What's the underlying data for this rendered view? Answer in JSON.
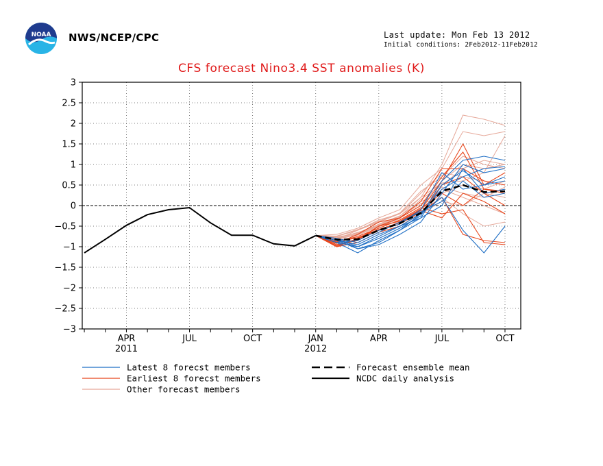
{
  "header": {
    "org": "NWS/NCEP/CPC",
    "last_update": "Last update: Mon Feb 13 2012",
    "initial_conditions": "Initial conditions: 2Feb2012-11Feb2012"
  },
  "logo": {
    "text": "NOAA",
    "colors": [
      "#1f3b8e",
      "#29b4e6"
    ]
  },
  "chart_data": {
    "type": "line",
    "title": "CFS forecast Nino3.4 SST anomalies (K)",
    "xlabel": "",
    "ylabel": "",
    "x_months": [
      "2011-02",
      "2011-03",
      "2011-04",
      "2011-05",
      "2011-06",
      "2011-07",
      "2011-08",
      "2011-09",
      "2011-10",
      "2011-11",
      "2011-12",
      "2012-01",
      "2012-02",
      "2012-03",
      "2012-04",
      "2012-05",
      "2012-06",
      "2012-07",
      "2012-08",
      "2012-09",
      "2012-10"
    ],
    "xtick_labels": [
      {
        "at": "2011-04",
        "label": "APR",
        "sub": "2011"
      },
      {
        "at": "2011-07",
        "label": "JUL",
        "sub": ""
      },
      {
        "at": "2011-10",
        "label": "OCT",
        "sub": ""
      },
      {
        "at": "2012-01",
        "label": "JAN",
        "sub": "2012"
      },
      {
        "at": "2012-04",
        "label": "APR",
        "sub": ""
      },
      {
        "at": "2012-07",
        "label": "JUL",
        "sub": ""
      },
      {
        "at": "2012-10",
        "label": "OCT",
        "sub": ""
      }
    ],
    "ylim": [
      -3,
      3
    ],
    "yticks": [
      "3",
      "2.5",
      "2",
      "1.5",
      "1",
      "0.5",
      "0",
      "−0.5",
      "−1",
      "−1.5",
      "−2",
      "−2.5",
      "−3"
    ],
    "grid": true,
    "zero_line": true,
    "colors": {
      "latest": "#1f6fc5",
      "earliest": "#e8461c",
      "other": "#e6a899",
      "mean": "#000000",
      "analysis": "#000000",
      "title": "#e01a1a"
    },
    "analysis": {
      "name": "NCDC daily analysis",
      "x": [
        "2011-02",
        "2011-03",
        "2011-04",
        "2011-05",
        "2011-06",
        "2011-07",
        "2011-08",
        "2011-09",
        "2011-10",
        "2011-11",
        "2011-12",
        "2012-01"
      ],
      "y": [
        -1.15,
        -0.82,
        -0.48,
        -0.22,
        -0.1,
        -0.05,
        -0.42,
        -0.72,
        -0.72,
        -0.93,
        -0.98,
        -0.73
      ]
    },
    "forecast_x": [
      "2012-01",
      "2012-02",
      "2012-03",
      "2012-04",
      "2012-05",
      "2012-06",
      "2012-07",
      "2012-08",
      "2012-09",
      "2012-10"
    ],
    "mean": {
      "name": "Forecast ensemble mean",
      "y": [
        -0.73,
        -0.83,
        -0.82,
        -0.6,
        -0.43,
        -0.18,
        0.35,
        0.5,
        0.33,
        0.35
      ]
    },
    "latest": {
      "name": "Latest 8 forecst members",
      "members": [
        [
          -0.73,
          -0.9,
          -1.15,
          -0.85,
          -0.6,
          -0.3,
          0.5,
          0.85,
          0.5,
          0.7
        ],
        [
          -0.73,
          -0.8,
          -1.05,
          -0.95,
          -0.7,
          -0.4,
          0.3,
          1.0,
          0.8,
          0.9
        ],
        [
          -0.73,
          -0.85,
          -0.95,
          -0.7,
          -0.5,
          -0.2,
          0.2,
          -0.6,
          -1.15,
          -0.5
        ],
        [
          -0.73,
          -0.9,
          -1.0,
          -0.8,
          -0.55,
          -0.25,
          0.6,
          1.1,
          1.2,
          1.1
        ],
        [
          -0.73,
          -0.8,
          -0.9,
          -0.65,
          -0.4,
          -0.15,
          0.1,
          0.6,
          0.2,
          0.3
        ],
        [
          -0.73,
          -0.85,
          -1.05,
          -0.9,
          -0.6,
          -0.2,
          0.4,
          0.7,
          0.9,
          0.95
        ],
        [
          -0.73,
          -0.9,
          -0.85,
          -0.6,
          -0.45,
          -0.1,
          0.8,
          0.4,
          0.5,
          0.6
        ],
        [
          -0.73,
          -0.8,
          -1.0,
          -0.75,
          -0.5,
          -0.3,
          0.0,
          0.9,
          0.3,
          0.4
        ]
      ]
    },
    "earliest": {
      "name": "Earliest 8 forecst members",
      "members": [
        [
          -0.73,
          -1.0,
          -0.8,
          -0.6,
          -0.4,
          -0.1,
          0.6,
          1.5,
          0.5,
          0.8
        ],
        [
          -0.73,
          -0.95,
          -0.85,
          -0.5,
          -0.3,
          0.0,
          0.7,
          1.3,
          0.4,
          0.3
        ],
        [
          -0.73,
          -0.9,
          -0.75,
          -0.55,
          -0.35,
          -0.05,
          -0.2,
          -0.1,
          -0.9,
          -0.95
        ],
        [
          -0.73,
          -0.98,
          -0.8,
          -0.6,
          -0.45,
          -0.15,
          0.2,
          -0.7,
          -0.85,
          -0.9
        ],
        [
          -0.73,
          -0.92,
          -0.7,
          -0.4,
          -0.3,
          0.1,
          0.9,
          0.9,
          0.6,
          0.5
        ],
        [
          -0.73,
          -0.88,
          -0.78,
          -0.58,
          -0.42,
          -0.12,
          -0.3,
          0.3,
          0.1,
          -0.2
        ],
        [
          -0.73,
          -1.0,
          -0.9,
          -0.65,
          -0.5,
          -0.2,
          0.5,
          0.7,
          0.3,
          0.0
        ],
        [
          -0.73,
          -0.95,
          -0.82,
          -0.5,
          -0.38,
          -0.08,
          0.3,
          0.0,
          0.4,
          0.35
        ]
      ]
    },
    "other": {
      "name": "Other forecast members",
      "members": [
        [
          -0.73,
          -0.75,
          -0.6,
          -0.35,
          -0.2,
          0.2,
          1.0,
          2.2,
          2.1,
          1.95
        ],
        [
          -0.73,
          -0.7,
          -0.55,
          -0.3,
          -0.1,
          0.5,
          0.9,
          1.8,
          1.7,
          1.8
        ],
        [
          -0.73,
          -0.8,
          -0.65,
          -0.5,
          -0.3,
          0.0,
          0.6,
          1.0,
          0.9,
          1.0
        ],
        [
          -0.73,
          -0.78,
          -0.7,
          -0.45,
          -0.25,
          0.1,
          0.3,
          0.5,
          0.4,
          0.6
        ],
        [
          -0.73,
          -0.85,
          -0.75,
          -0.55,
          -0.35,
          -0.1,
          0.4,
          0.2,
          0.0,
          -0.2
        ],
        [
          -0.73,
          -0.82,
          -0.6,
          -0.4,
          -0.2,
          0.3,
          0.8,
          0.7,
          0.6,
          0.5
        ],
        [
          -0.73,
          -0.76,
          -0.68,
          -0.48,
          -0.28,
          0.05,
          0.2,
          -0.2,
          -0.5,
          -0.4
        ],
        [
          -0.73,
          -0.8,
          -0.72,
          -0.52,
          -0.32,
          0.15,
          0.5,
          0.9,
          1.1,
          1.0
        ],
        [
          -0.73,
          -0.74,
          -0.58,
          -0.38,
          -0.18,
          0.35,
          0.7,
          1.2,
          1.0,
          0.9
        ],
        [
          -0.73,
          -0.88,
          -0.78,
          -0.6,
          -0.4,
          -0.2,
          0.1,
          0.0,
          0.3,
          0.2
        ],
        [
          -0.73,
          -0.79,
          -0.66,
          -0.46,
          -0.26,
          0.2,
          0.55,
          0.6,
          0.8,
          1.7
        ],
        [
          -0.73,
          -0.83,
          -0.7,
          -0.5,
          -0.3,
          0.0,
          0.45,
          0.3,
          0.2,
          0.45
        ]
      ]
    },
    "legend": {
      "placement": "bottom",
      "entries": [
        {
          "key": "latest",
          "label": "Latest 8 forecst members",
          "style": "line"
        },
        {
          "key": "earliest",
          "label": "Earliest 8 forecst members",
          "style": "line"
        },
        {
          "key": "other",
          "label": "Other forecast members",
          "style": "line"
        },
        {
          "key": "mean",
          "label": "Forecast ensemble mean",
          "style": "dashed"
        },
        {
          "key": "analysis",
          "label": "NCDC daily analysis",
          "style": "solid"
        }
      ]
    }
  }
}
